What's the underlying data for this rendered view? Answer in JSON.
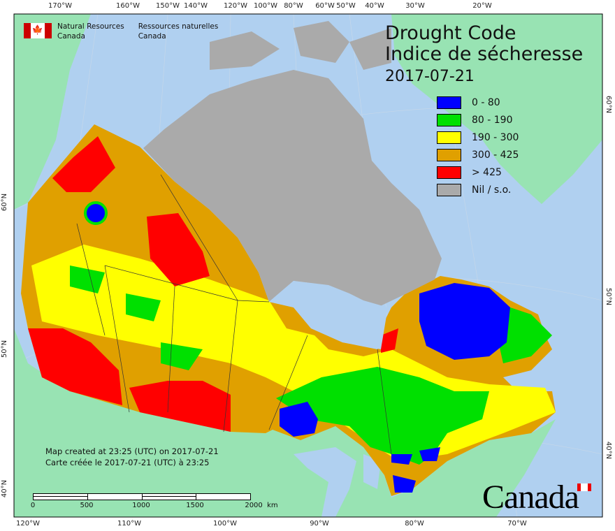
{
  "header": {
    "org_en": [
      "Natural Resources",
      "Canada"
    ],
    "org_fr": [
      "Ressources naturelles",
      "Canada"
    ],
    "flag_symbol": "🍁"
  },
  "title": {
    "line1": "Drought Code",
    "line2": "Indice de sécheresse",
    "date": "2017-07-21"
  },
  "legend": [
    {
      "label": "0 - 80",
      "color": "#0000ff"
    },
    {
      "label": "80 - 190",
      "color": "#00e000"
    },
    {
      "label": "190 - 300",
      "color": "#ffff00"
    },
    {
      "label": "300 - 425",
      "color": "#e0a000"
    },
    {
      "label": "> 425",
      "color": "#ff0000"
    },
    {
      "label": "Nil / s.o.",
      "color": "#aaaaaa"
    }
  ],
  "axes": {
    "top": [
      "170°W",
      "160°W",
      "150°W",
      "140°W",
      "120°W",
      "100°W",
      "80°W",
      "60°W",
      "50°W",
      "40°W",
      "30°W",
      "20°W"
    ],
    "bottom": [
      "120°W",
      "110°W",
      "100°W",
      "90°W",
      "80°W",
      "70°W"
    ],
    "left": [
      "60°N",
      "50°N",
      "40°N"
    ],
    "right": [
      "60°N",
      "50°N",
      "40°N"
    ]
  },
  "footer": {
    "created_en": "Map created at 23:25 (UTC) on 2017-07-21",
    "created_fr": "Carte créée le 2017-07-21 (UTC) à 23:25",
    "scale_labels": [
      "0",
      "500",
      "1000",
      "1500",
      "2000  km"
    ],
    "wordmark": "Canada"
  },
  "colors": {
    "ocean": "#b0d0f0",
    "land": "#98e3b3",
    "nodata": "#aaaaaa"
  }
}
